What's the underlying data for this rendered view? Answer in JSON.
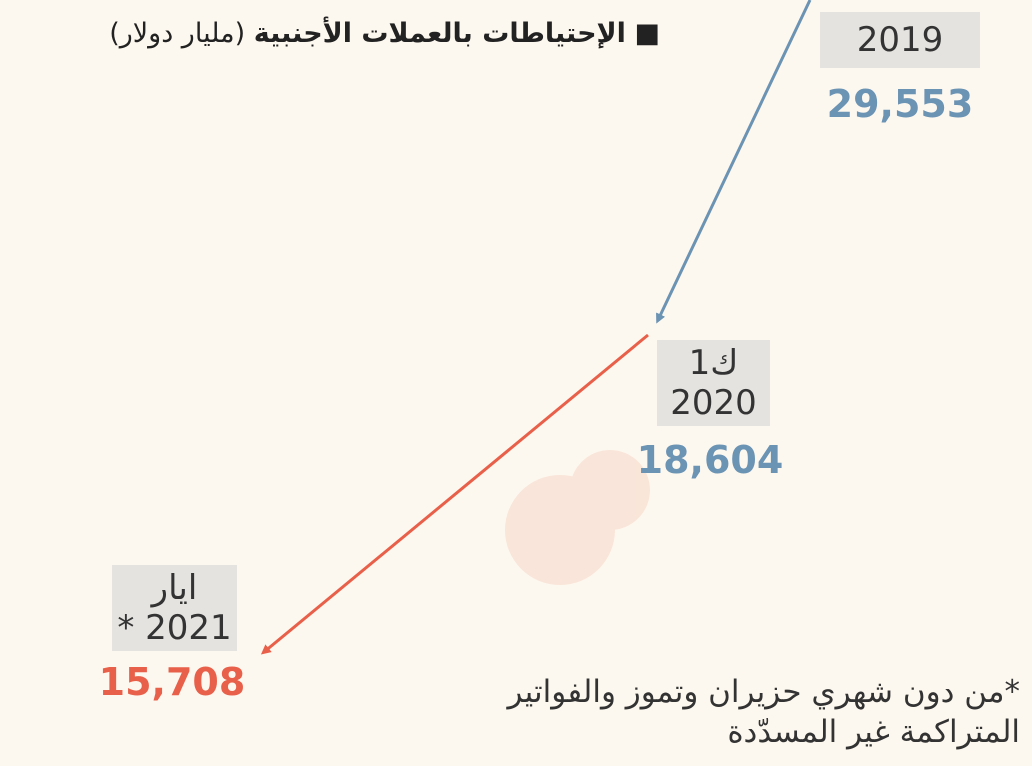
{
  "title": "الإحتياطات بالعملات الأجنبية",
  "unit": "(مليار دولار)",
  "points": [
    {
      "period": [
        "2019"
      ],
      "value": "29,553"
    },
    {
      "period": [
        "ك1",
        "2020"
      ],
      "value": "18,604"
    },
    {
      "period": [
        "ايار",
        "2021 *"
      ],
      "value": "15,708"
    }
  ],
  "footnote": [
    "*من دون شهري حزيران وتموز والفواتير",
    "المتراكمة غير المسدّدة"
  ]
}
